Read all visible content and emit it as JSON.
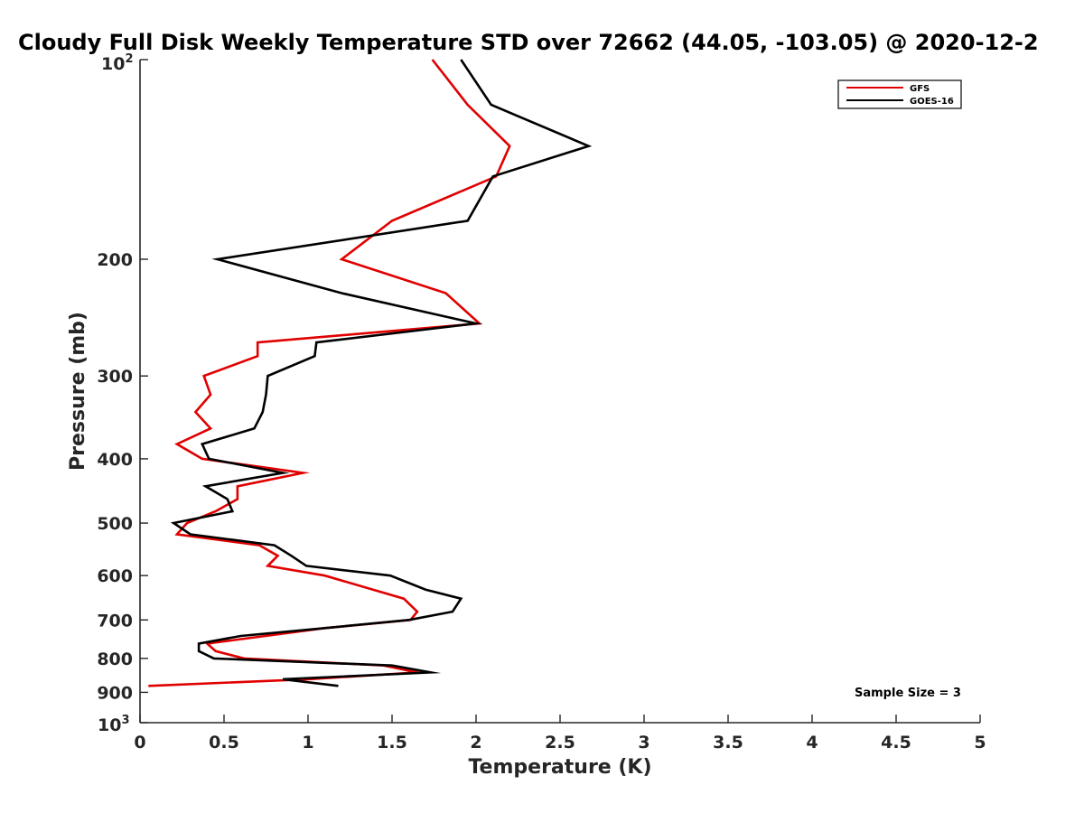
{
  "chart_data": {
    "type": "line",
    "title": "Cloudy Full Disk Weekly Temperature STD over 72662 (44.05, -103.05) @ 2020-12-2",
    "xlabel": "Temperature (K)",
    "ylabel": "Pressure (mb)",
    "xlim": [
      0,
      5
    ],
    "ylim": [
      100,
      1000
    ],
    "yscale": "log",
    "y_reversed": true,
    "x_ticks": [
      "0",
      "0.5",
      "1",
      "1.5",
      "2",
      "2.5",
      "3",
      "3.5",
      "4",
      "4.5",
      "5"
    ],
    "y_ticks": [
      {
        "value": 200,
        "label": "200"
      },
      {
        "value": 300,
        "label": "300"
      },
      {
        "value": 400,
        "label": "400"
      },
      {
        "value": 500,
        "label": "500"
      },
      {
        "value": 600,
        "label": "600"
      },
      {
        "value": 700,
        "label": "700"
      },
      {
        "value": 800,
        "label": "800"
      },
      {
        "value": 900,
        "label": "900"
      }
    ],
    "y_end_labels": {
      "top_base": "10",
      "top_exp": "2",
      "bottom_base": "10",
      "bottom_exp": "3"
    },
    "grid": false,
    "legend_position": "top-right",
    "annotation": "Sample Size = 3",
    "series": [
      {
        "name": "GFS",
        "color": "#e00000",
        "points": [
          [
            1.74,
            100
          ],
          [
            1.95,
            117
          ],
          [
            2.2,
            135
          ],
          [
            2.12,
            150
          ],
          [
            1.5,
            175
          ],
          [
            1.2,
            200
          ],
          [
            1.82,
            225
          ],
          [
            2.02,
            250
          ],
          [
            0.7,
            267
          ],
          [
            0.7,
            280
          ],
          [
            0.38,
            300
          ],
          [
            0.42,
            320
          ],
          [
            0.33,
            340
          ],
          [
            0.42,
            360
          ],
          [
            0.22,
            380
          ],
          [
            0.37,
            400
          ],
          [
            0.97,
            420
          ],
          [
            0.58,
            440
          ],
          [
            0.58,
            460
          ],
          [
            0.45,
            480
          ],
          [
            0.28,
            500
          ],
          [
            0.22,
            520
          ],
          [
            0.71,
            540
          ],
          [
            0.82,
            560
          ],
          [
            0.76,
            580
          ],
          [
            1.1,
            600
          ],
          [
            1.57,
            650
          ],
          [
            1.65,
            680
          ],
          [
            1.61,
            700
          ],
          [
            1.1,
            720
          ],
          [
            0.4,
            760
          ],
          [
            0.45,
            780
          ],
          [
            0.62,
            800
          ],
          [
            1.45,
            820
          ],
          [
            1.65,
            840
          ],
          [
            1.0,
            860
          ],
          [
            0.05,
            880
          ]
        ]
      },
      {
        "name": "GOES-16",
        "color": "#000000",
        "points": [
          [
            1.91,
            100
          ],
          [
            2.09,
            117
          ],
          [
            2.67,
            135
          ],
          [
            2.1,
            150
          ],
          [
            1.95,
            175
          ],
          [
            0.46,
            200
          ],
          [
            1.2,
            225
          ],
          [
            2.0,
            250
          ],
          [
            1.05,
            267
          ],
          [
            1.04,
            280
          ],
          [
            0.76,
            300
          ],
          [
            0.75,
            320
          ],
          [
            0.73,
            340
          ],
          [
            0.68,
            360
          ],
          [
            0.37,
            380
          ],
          [
            0.41,
            400
          ],
          [
            0.85,
            420
          ],
          [
            0.39,
            440
          ],
          [
            0.52,
            460
          ],
          [
            0.55,
            480
          ],
          [
            0.2,
            500
          ],
          [
            0.3,
            520
          ],
          [
            0.8,
            540
          ],
          [
            0.9,
            560
          ],
          [
            0.99,
            580
          ],
          [
            1.49,
            600
          ],
          [
            1.7,
            630
          ],
          [
            1.91,
            650
          ],
          [
            1.86,
            680
          ],
          [
            1.6,
            700
          ],
          [
            1.1,
            720
          ],
          [
            0.6,
            740
          ],
          [
            0.35,
            760
          ],
          [
            0.35,
            780
          ],
          [
            0.44,
            800
          ],
          [
            1.5,
            820
          ],
          [
            1.73,
            840
          ],
          [
            0.85,
            860
          ],
          [
            1.18,
            880
          ]
        ]
      }
    ]
  }
}
